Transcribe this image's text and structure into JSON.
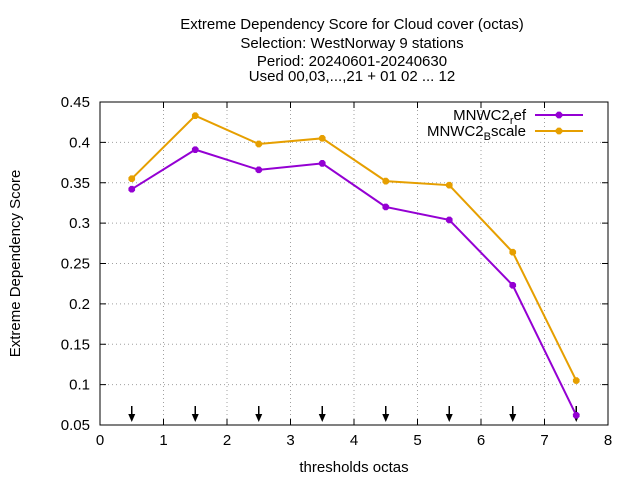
{
  "chart_data": {
    "type": "line",
    "title_lines": [
      "Extreme Dependency Score  for Cloud cover (octas)",
      "Selection: WestNorway       9 stations",
      "Period: 20240601-20240630",
      "Used 00,03,...,21 + 01 02 ... 12"
    ],
    "xlabel": "thresholds octas",
    "ylabel": "Extreme Dependency Score",
    "xlim": [
      0,
      8
    ],
    "ylim": [
      0.05,
      0.45
    ],
    "xticks": [
      "0",
      "1",
      "2",
      "3",
      "4",
      "5",
      "6",
      "7",
      "8"
    ],
    "yticks": [
      "0.05",
      "0.1",
      "0.15",
      "0.2",
      "0.25",
      "0.3",
      "0.35",
      "0.4",
      "0.45"
    ],
    "grid": true,
    "legend_position": "top-right",
    "x": [
      0.5,
      1.5,
      2.5,
      3.5,
      4.5,
      5.5,
      6.5,
      7.5
    ],
    "series": [
      {
        "name_main": "MNWC2",
        "name_sub": "r",
        "name_rest": "ef",
        "color": "#9400d3",
        "values": [
          0.342,
          0.391,
          0.366,
          0.374,
          0.32,
          0.304,
          0.223,
          0.062
        ]
      },
      {
        "name_main": "MNWC2",
        "name_sub": "B",
        "name_rest": "scale",
        "color": "#e69f00",
        "values": [
          0.355,
          0.433,
          0.398,
          0.405,
          0.352,
          0.347,
          0.264,
          0.105
        ]
      }
    ],
    "arrow_markers_x": [
      0.5,
      1.5,
      2.5,
      3.5,
      4.5,
      5.5,
      6.5,
      7.5
    ]
  }
}
